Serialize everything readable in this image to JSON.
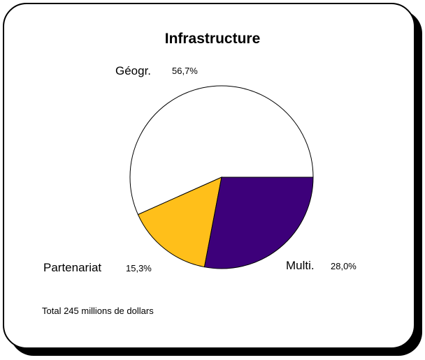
{
  "chart_data": {
    "type": "pie",
    "title": "Infrastructure",
    "slices": [
      {
        "label": "Géogr.",
        "value": 56.7,
        "value_text": "56,7%",
        "color": "#ffffff"
      },
      {
        "label": "Multi.",
        "value": 28.0,
        "value_text": "28,0%",
        "color": "#3d007a"
      },
      {
        "label": "Partenariat",
        "value": 15.3,
        "value_text": "15,3%",
        "color": "#ffbf1a"
      }
    ],
    "note": "Total 245 millions de dollars"
  }
}
